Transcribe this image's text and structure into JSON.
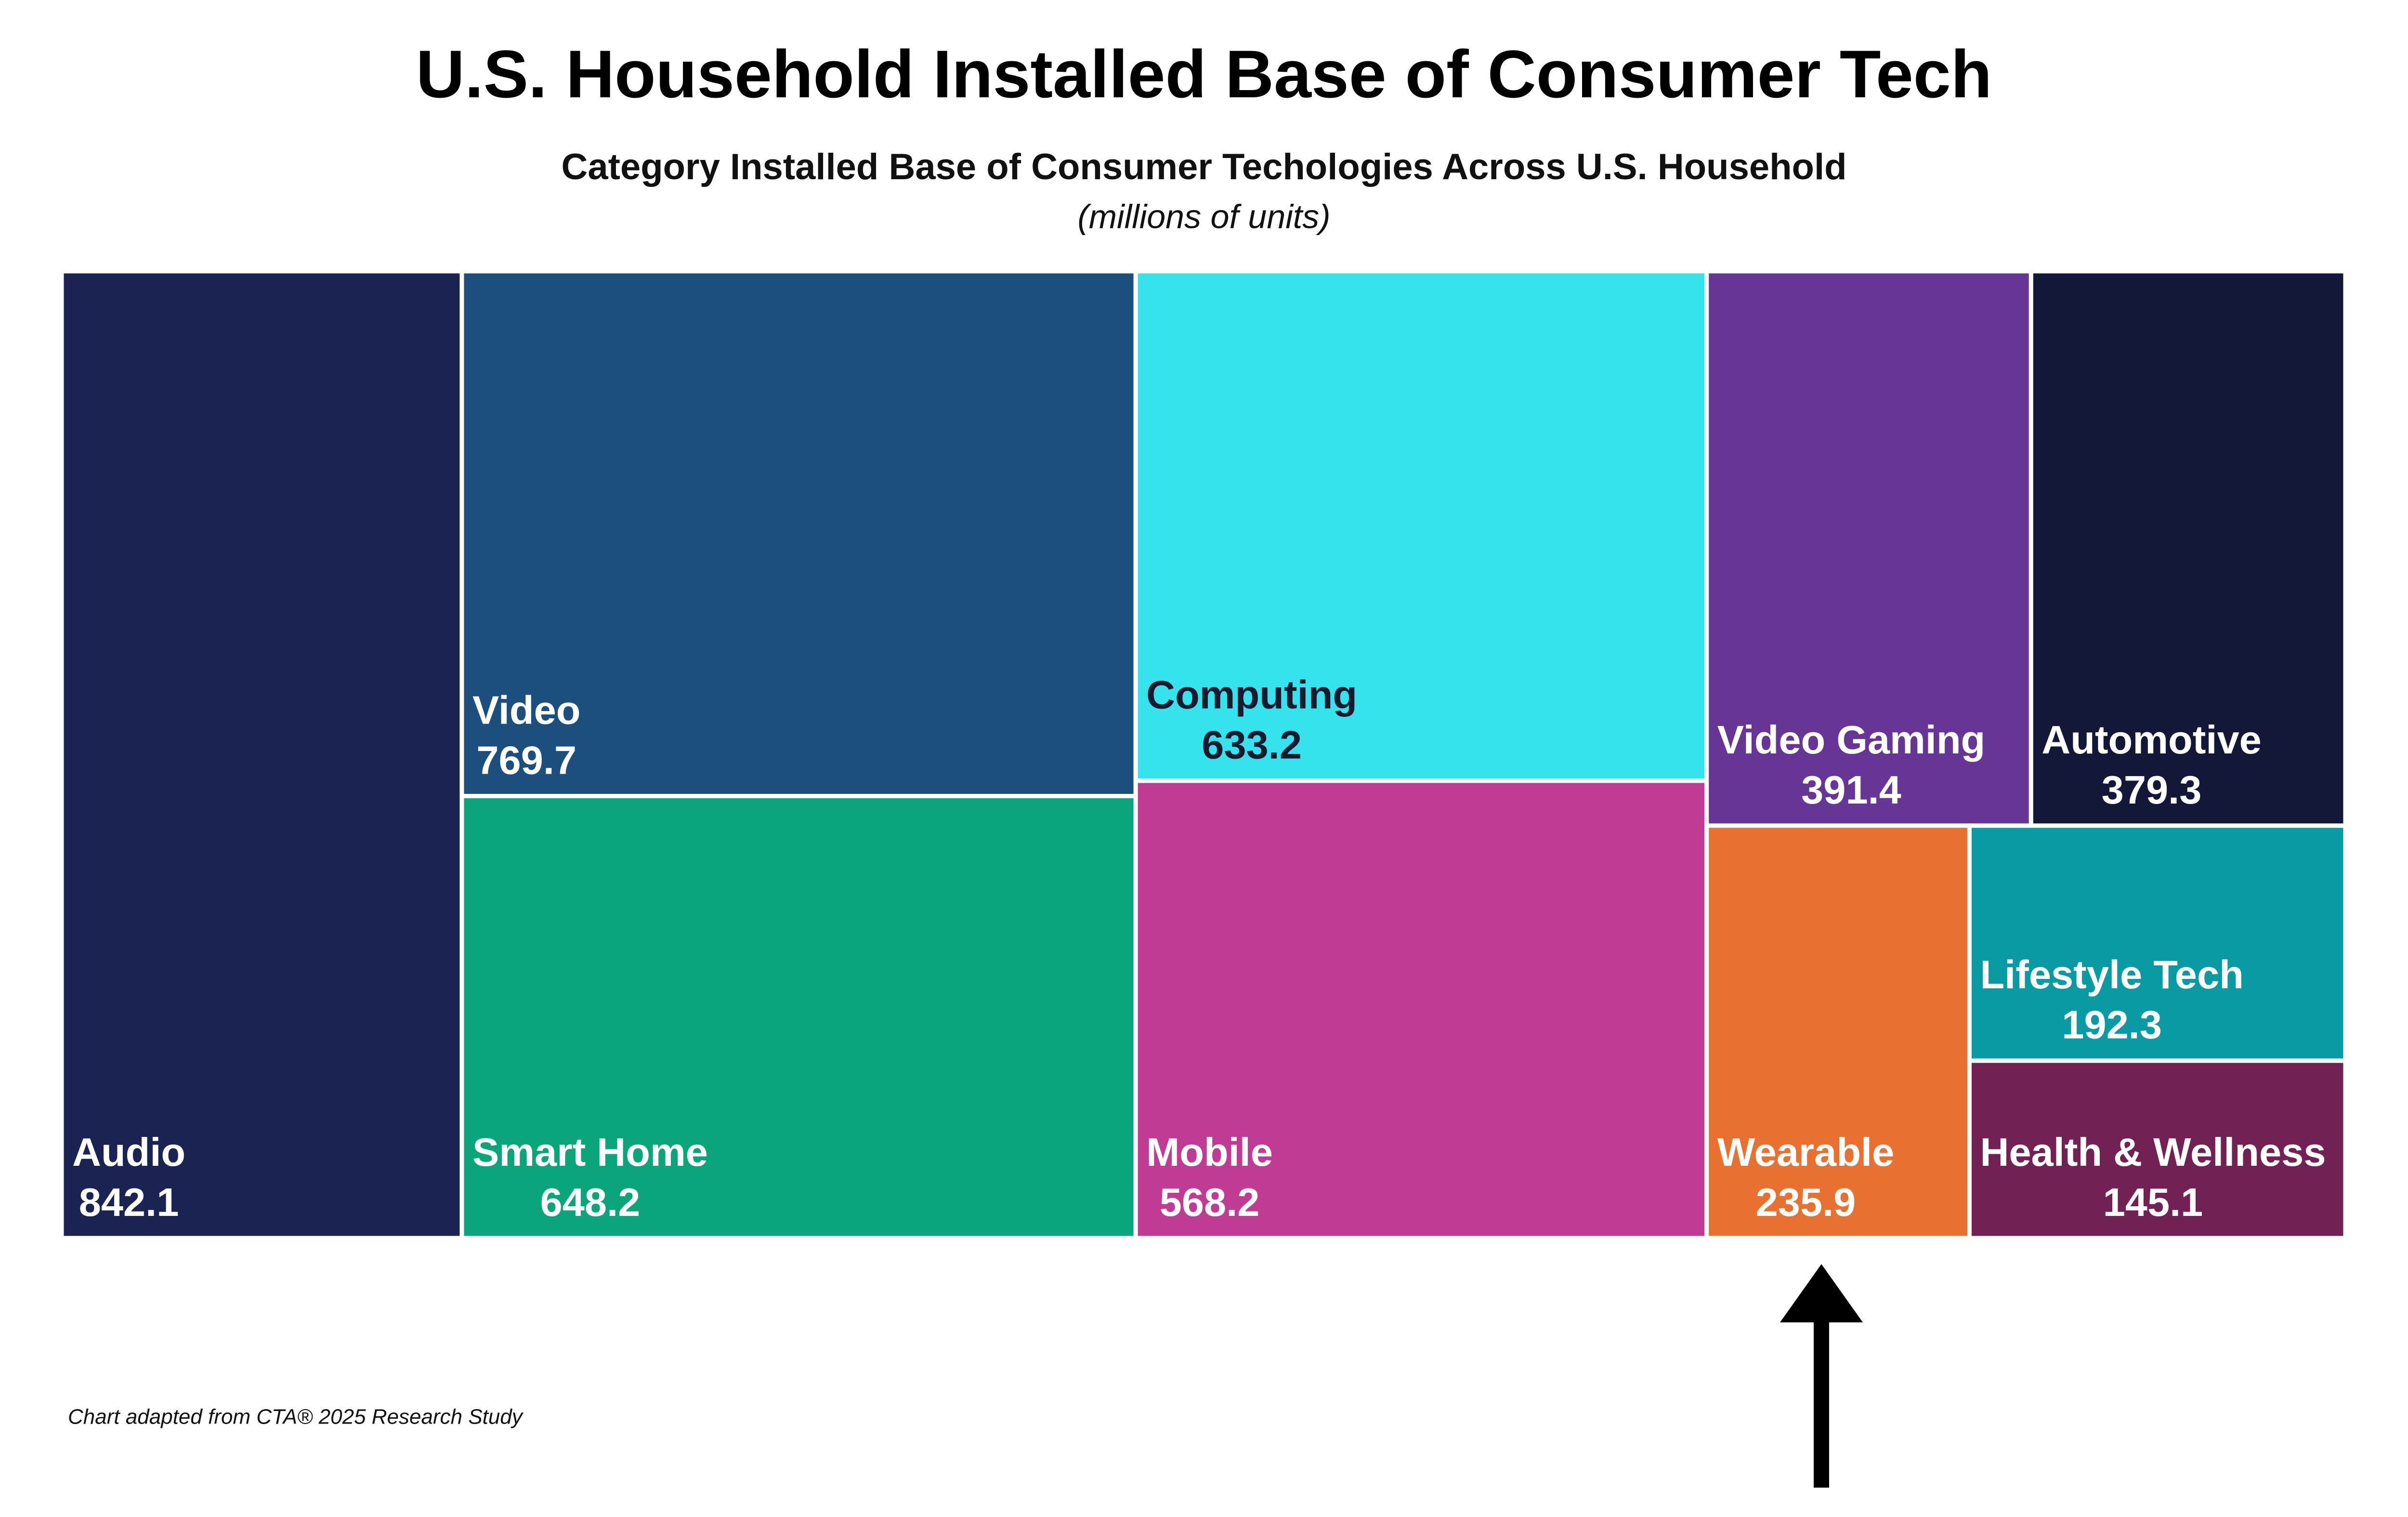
{
  "chart_data": {
    "type": "treemap",
    "title": "U.S. Household Installed Base of Consumer Tech",
    "subtitle": "Category Installed Base of Consumer Techologies Across U.S. Household",
    "units": "(millions of units)",
    "footnote": "Chart adapted from CTA® 2025 Research Study",
    "categories": [
      "Audio",
      "Video",
      "Smart Home",
      "Computing",
      "Mobile",
      "Video Gaming",
      "Automotive",
      "Wearable",
      "Lifestyle Tech",
      "Health & Wellness"
    ],
    "values": [
      842.1,
      769.7,
      648.2,
      633.2,
      568.2,
      391.4,
      379.3,
      235.9,
      192.3,
      145.1
    ],
    "colors": [
      "#1b2353",
      "#1d4f7e",
      "#0aa57a",
      "#35e3ee",
      "#c03c94",
      "#653695",
      "#141838",
      "#e87132",
      "#0a9aa3",
      "#722155"
    ],
    "label_colors": [
      "#ffffff",
      "#ffffff",
      "#ffffff",
      "#1a1a2e",
      "#ffffff",
      "#ffffff",
      "#ffffff",
      "#ffffff",
      "#ffffff",
      "#ffffff"
    ]
  }
}
